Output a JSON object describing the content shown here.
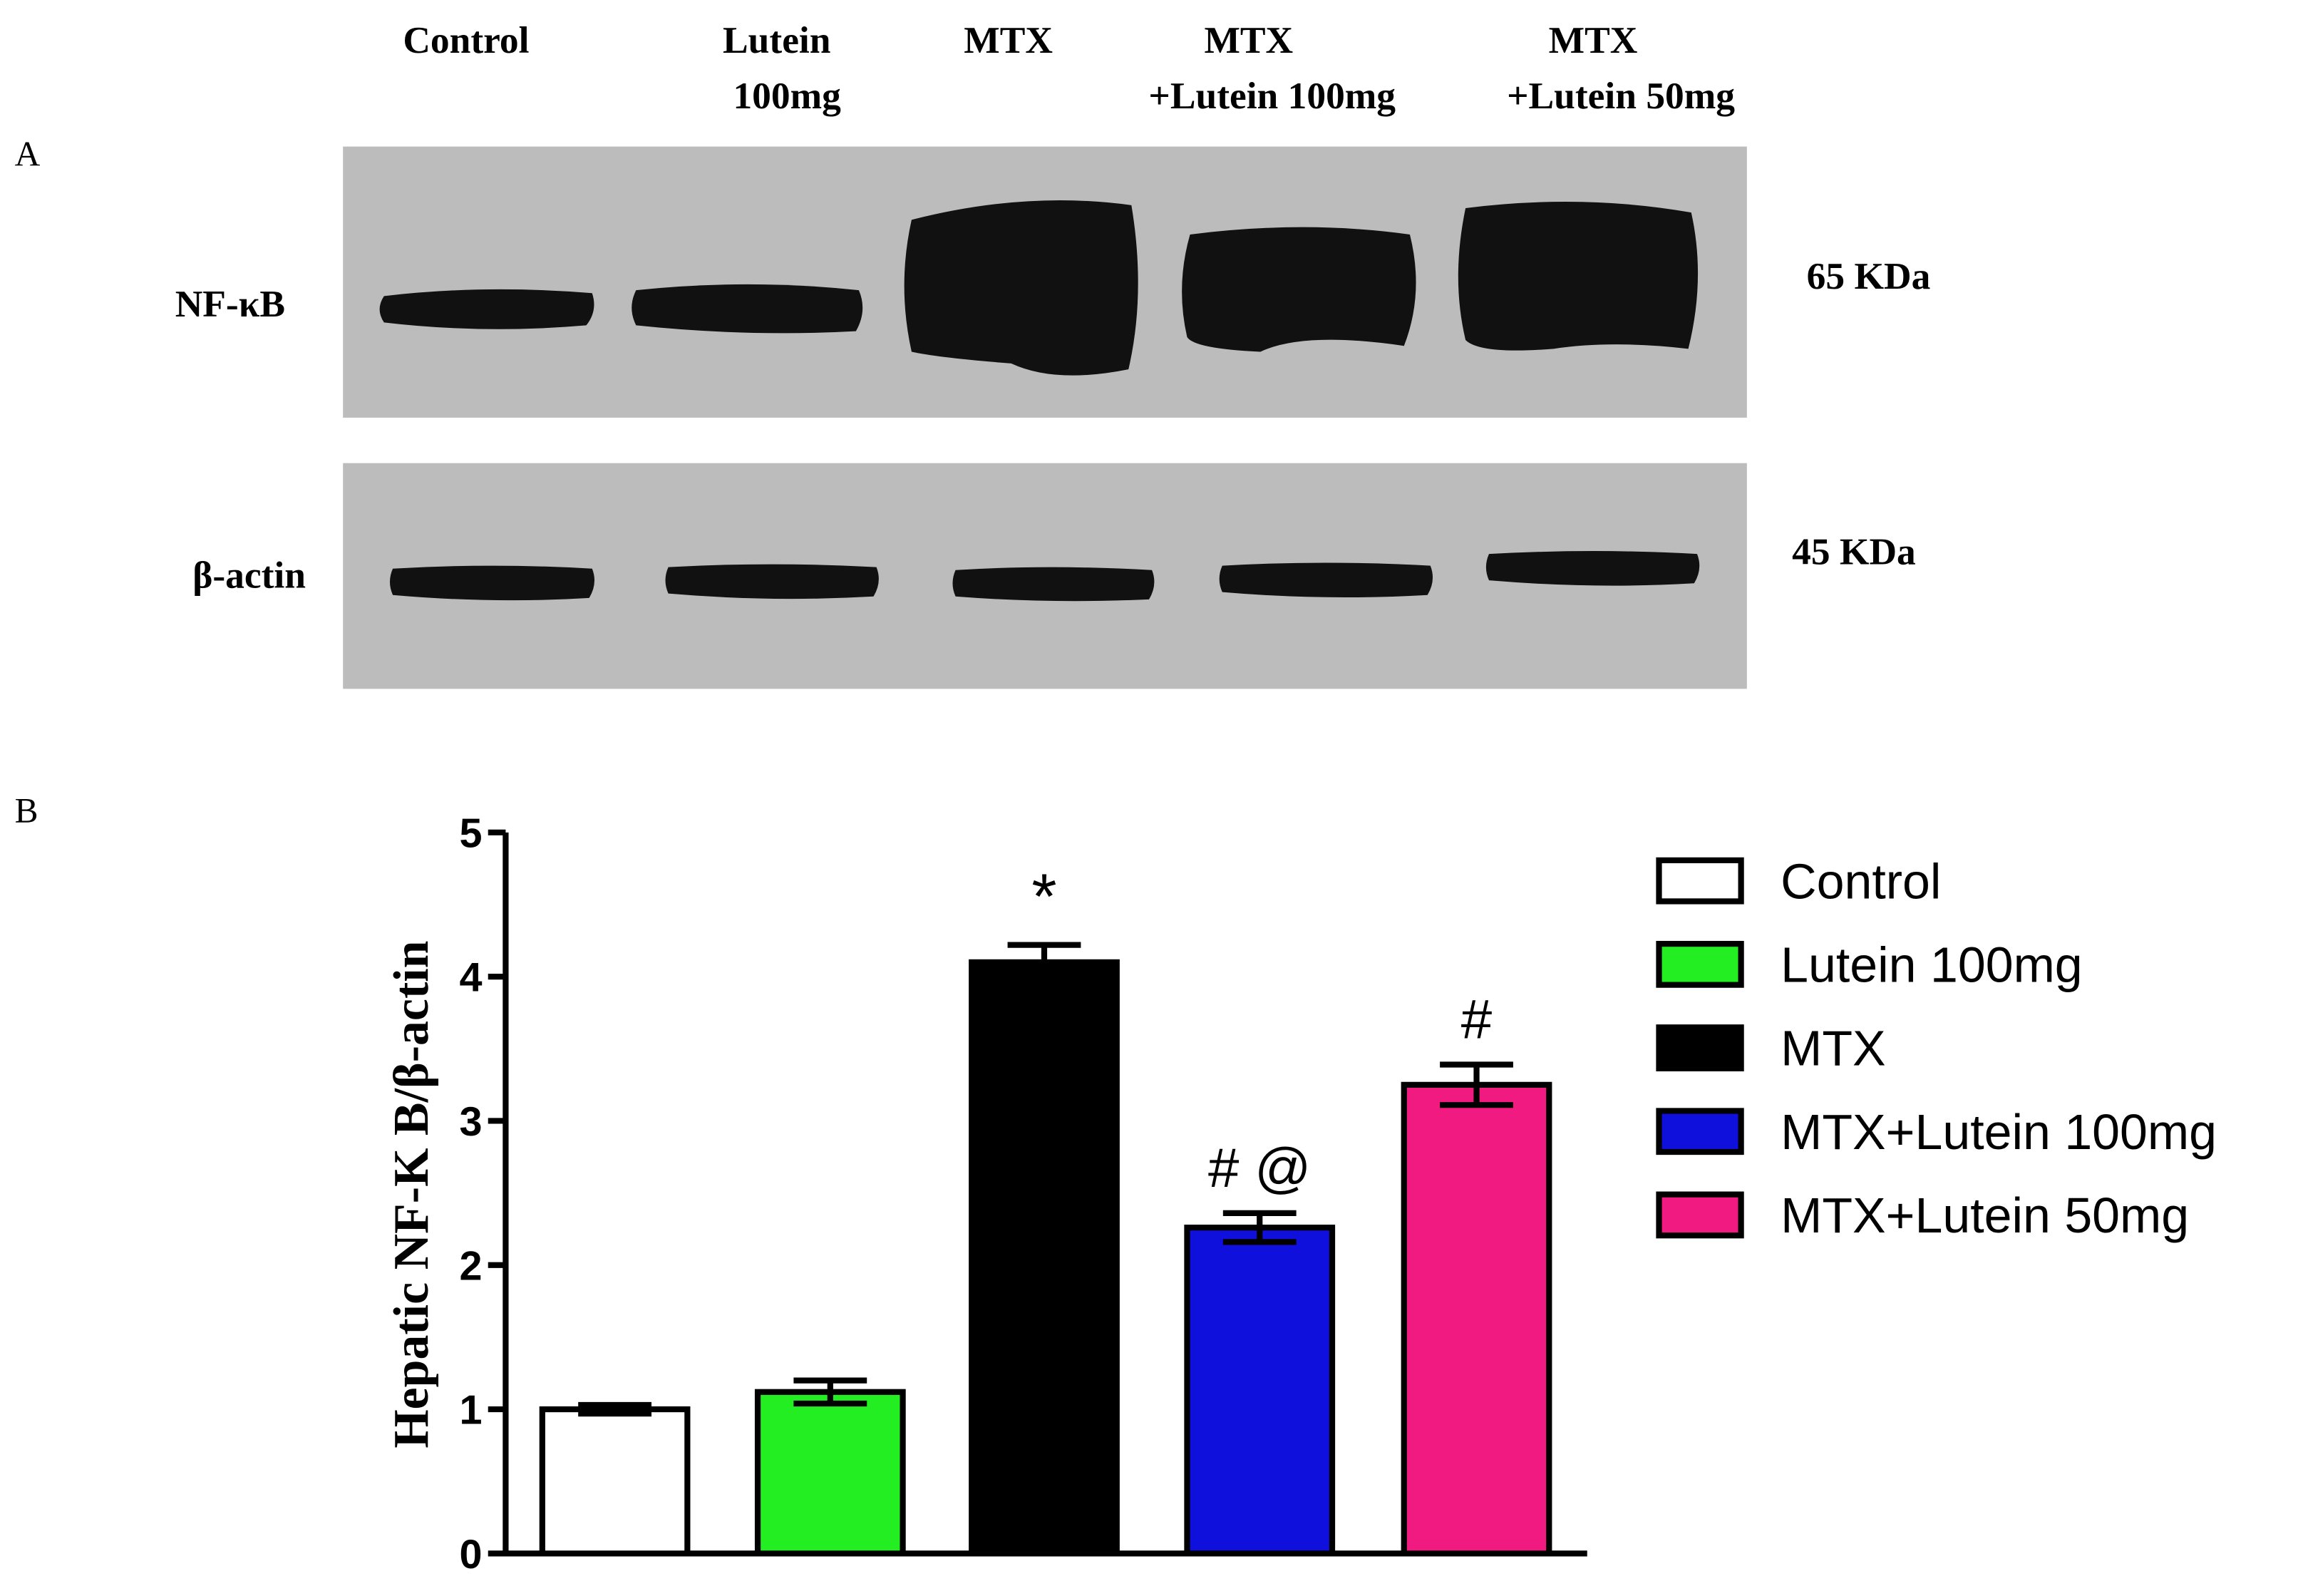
{
  "blot": {
    "panel_label": "A",
    "lanes": [
      [
        "Control"
      ],
      [
        "Lutein",
        "100mg"
      ],
      [
        "MTX"
      ],
      [
        "MTX",
        "+Lutein 100mg"
      ],
      [
        "MTX",
        "+Lutein 50mg"
      ]
    ],
    "rows": [
      {
        "label": "NF-κB",
        "size": "65 KDa"
      },
      {
        "label": "β-actin",
        "size": "45 KDa"
      }
    ]
  },
  "chart_data": {
    "type": "bar",
    "panel_label": "B",
    "y_label": "Hepatic NF-K B/β-actin",
    "categories": [
      "Control",
      "Lutein 100mg",
      "MTX",
      "MTX+Lutein 100mg",
      "MTX+Lutein 50mg"
    ],
    "values": [
      1.0,
      1.12,
      4.1,
      2.26,
      3.25
    ],
    "errors": [
      0.03,
      0.08,
      0.12,
      0.1,
      0.14
    ],
    "annotations": [
      null,
      null,
      "*",
      "# @",
      "#"
    ],
    "colors": [
      "#ffffff",
      "#22ee22",
      "#000000",
      "#1010dd",
      "#f01a80"
    ],
    "ylim": [
      0,
      5
    ],
    "yticks": [
      0,
      1,
      2,
      3,
      4,
      5
    ]
  }
}
